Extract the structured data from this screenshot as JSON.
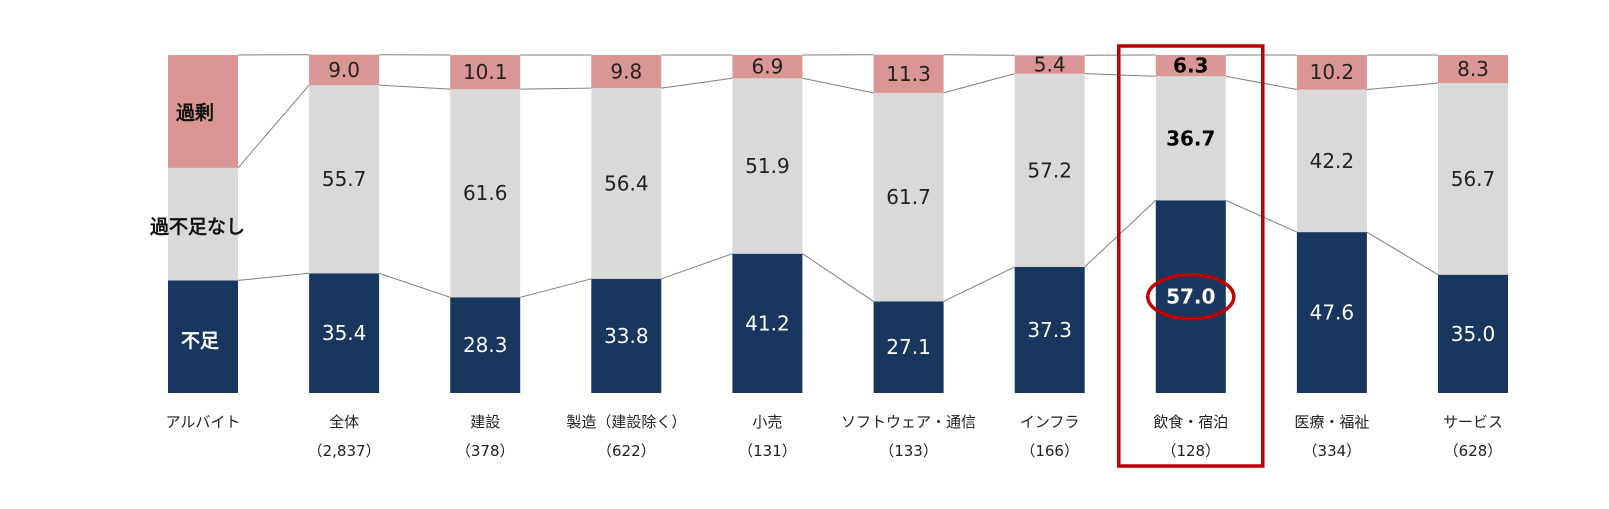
{
  "chart_data": {
    "type": "bar",
    "stacked": true,
    "normalized_percent": true,
    "ylim": [
      0,
      100
    ],
    "segment_order_bottom_to_top": [
      "不足",
      "過不足なし",
      "過剰"
    ],
    "legend": {
      "shortage": "不足",
      "balanced": "過不足なし",
      "surplus": "過剰"
    },
    "colors": {
      "shortage": "#17375e",
      "balanced": "#d9d9d9",
      "surplus": "#da9694",
      "highlight": "#c00000",
      "connector": "#7f7f7f"
    },
    "categories": [
      {
        "name": "アルバイト",
        "n": "",
        "label_only": true
      },
      {
        "name": "全体",
        "n": "（2,837）"
      },
      {
        "name": "建設",
        "n": "（378）"
      },
      {
        "name": "製造（建設除く）",
        "n": "（622）"
      },
      {
        "name": "小売",
        "n": "（131）"
      },
      {
        "name": "ソフトウェア・通信",
        "n": "（133）"
      },
      {
        "name": "インフラ",
        "n": "（166）"
      },
      {
        "name": "飲食・宿泊",
        "n": "（128）",
        "highlight": true
      },
      {
        "name": "医療・福祉",
        "n": "（334）"
      },
      {
        "name": "サービス",
        "n": "（628）"
      }
    ],
    "series": [
      {
        "name": "不足",
        "key": "shortage",
        "values": [
          33.3,
          35.4,
          28.3,
          33.8,
          41.2,
          27.1,
          37.3,
          57.0,
          47.6,
          35.0
        ],
        "labels": [
          "",
          "35.4",
          "28.3",
          "33.8",
          "41.2",
          "27.1",
          "37.3",
          "57.0",
          "47.6",
          "35.0"
        ]
      },
      {
        "name": "過不足なし",
        "key": "balanced",
        "values": [
          33.3,
          55.7,
          61.6,
          56.4,
          51.9,
          61.7,
          57.2,
          36.7,
          42.2,
          56.7
        ],
        "labels": [
          "",
          "55.7",
          "61.6",
          "56.4",
          "51.9",
          "61.7",
          "57.2",
          "36.7",
          "42.2",
          "56.7"
        ]
      },
      {
        "name": "過剰",
        "key": "surplus",
        "values": [
          33.4,
          9.0,
          10.1,
          9.8,
          6.9,
          11.3,
          5.4,
          6.3,
          10.2,
          8.3
        ],
        "labels": [
          "",
          "9.0",
          "10.1",
          "9.8",
          "6.9",
          "11.3",
          "5.4",
          "6.3",
          "10.2",
          "8.3"
        ]
      }
    ]
  }
}
